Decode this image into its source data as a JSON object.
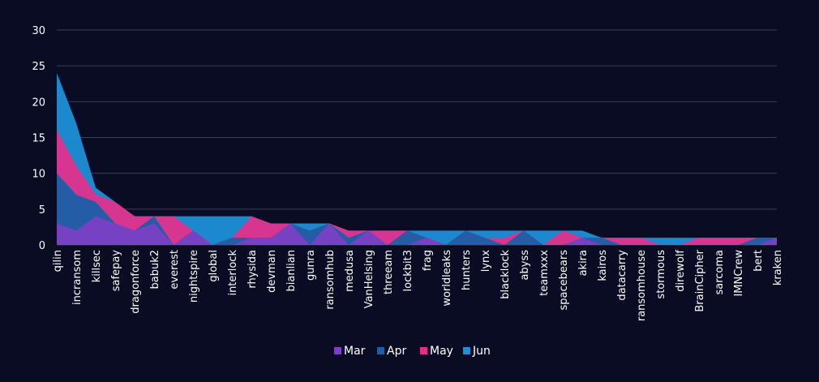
{
  "chart_data": {
    "type": "area",
    "stacked": true,
    "categories": [
      "qilin",
      "incransom",
      "killsec",
      "safepay",
      "dragonforce",
      "babuk2",
      "everest",
      "nightspire",
      "global",
      "interlock",
      "rhysida",
      "devman",
      "bianlian",
      "gunra",
      "ransomhub",
      "medusa",
      "VanHelsing",
      "threeam",
      "lockbit3",
      "frag",
      "worldleaks",
      "hunters",
      "lynx",
      "blacklock",
      "abyss",
      "teamxxx",
      "spacebears",
      "akira",
      "kairos",
      "datacarry",
      "ransomhouse",
      "stormous",
      "direwolf",
      "BrainCipher",
      "sarcoma",
      "IMNCrew",
      "bert",
      "kraken"
    ],
    "series": [
      {
        "name": "Mar",
        "color": "#7b3fc4",
        "values": [
          3,
          2,
          4,
          3,
          2,
          3,
          0,
          2,
          0,
          0,
          1,
          1,
          3,
          0,
          3,
          0,
          2,
          0,
          0,
          1,
          0,
          0,
          0,
          0,
          0,
          0,
          0,
          1,
          0,
          0,
          0,
          0,
          0,
          0,
          0,
          0,
          0,
          1
        ]
      },
      {
        "name": "Apr",
        "color": "#1a5fa8",
        "values": [
          7,
          5,
          2,
          0,
          0,
          1,
          0,
          0,
          0,
          1,
          0,
          0,
          0,
          2,
          0,
          1,
          0,
          0,
          2,
          0,
          0,
          2,
          1,
          0,
          2,
          0,
          0,
          0,
          1,
          0,
          0,
          0,
          0,
          0,
          0,
          0,
          1,
          0
        ]
      },
      {
        "name": "May",
        "color": "#e0308c",
        "values": [
          6,
          4,
          1,
          3,
          2,
          0,
          4,
          0,
          0,
          0,
          3,
          2,
          0,
          0,
          0,
          1,
          0,
          2,
          0,
          0,
          0,
          0,
          0,
          1,
          0,
          0,
          2,
          0,
          0,
          1,
          1,
          0,
          0,
          1,
          1,
          1,
          0,
          0
        ]
      },
      {
        "name": "Jun",
        "color": "#1e8fd8",
        "values": [
          8,
          6,
          1,
          0,
          0,
          0,
          0,
          2,
          4,
          3,
          0,
          0,
          0,
          1,
          0,
          0,
          0,
          0,
          0,
          1,
          2,
          0,
          1,
          1,
          0,
          2,
          0,
          1,
          0,
          0,
          0,
          1,
          1,
          0,
          0,
          0,
          0,
          0
        ]
      }
    ],
    "ylim": [
      0,
      30
    ],
    "yticks": [
      0,
      5,
      10,
      15,
      20,
      25,
      30
    ],
    "grid": true,
    "legend": "bottom",
    "xlabel": "",
    "ylabel": ""
  }
}
